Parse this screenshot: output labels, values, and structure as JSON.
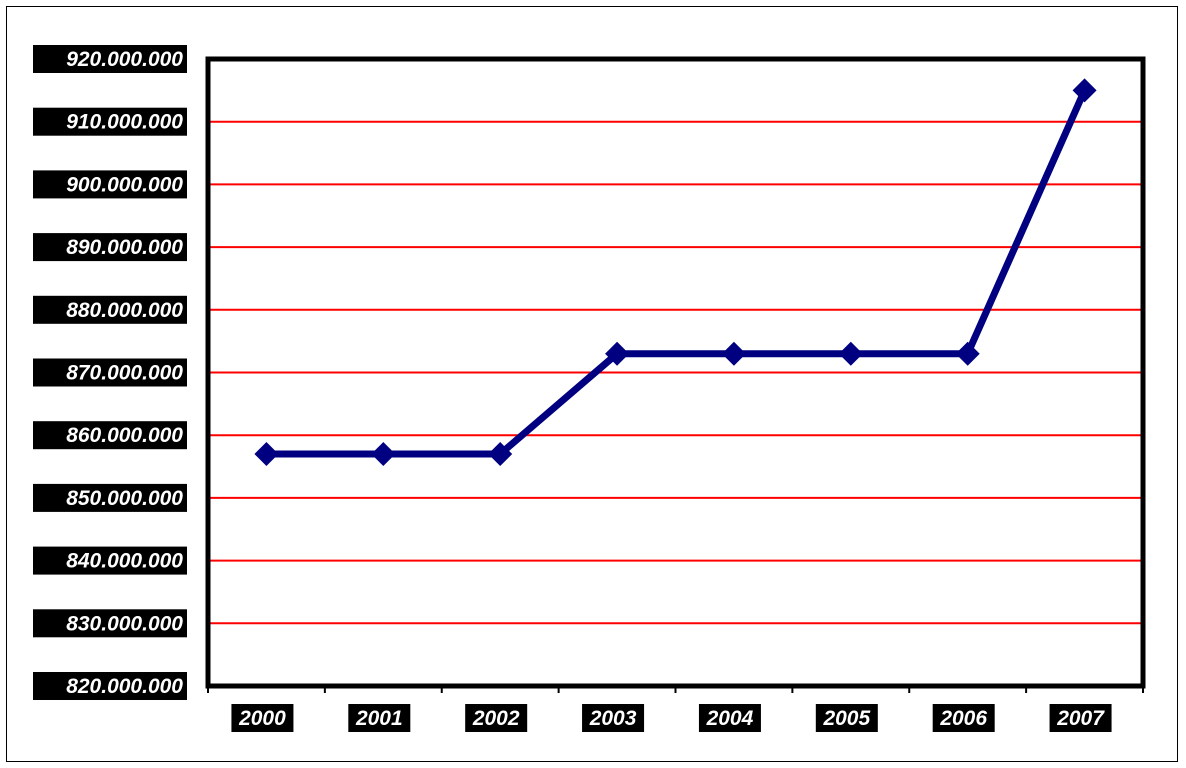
{
  "chart_data": {
    "type": "line",
    "title": "",
    "xlabel": "",
    "ylabel": "",
    "categories": [
      "2000",
      "2001",
      "2002",
      "2003",
      "2004",
      "2005",
      "2006",
      "2007"
    ],
    "series": [
      {
        "values": [
          857000000,
          857000000,
          857000000,
          873000000,
          873000000,
          873000000,
          873000000,
          915000000
        ]
      }
    ],
    "ylim": [
      820000000,
      920000000
    ],
    "yticks": [
      820000000,
      830000000,
      840000000,
      850000000,
      860000000,
      870000000,
      880000000,
      890000000,
      900000000,
      910000000,
      920000000
    ],
    "ytick_labels": [
      "820.000.000",
      "830.000.000",
      "840.000.000",
      "850.000.000",
      "860.000.000",
      "870.000.000",
      "880.000.000",
      "890.000.000",
      "900.000.000",
      "910.000.000",
      "920.000.000"
    ],
    "grid": true,
    "legend": "none",
    "colors": {
      "line": "#000080",
      "marker": "#000080",
      "grid": "#ff0000",
      "axis": "#000000",
      "label_background": "#000000",
      "label_text": "#ffffff"
    },
    "marker": "diamond"
  }
}
